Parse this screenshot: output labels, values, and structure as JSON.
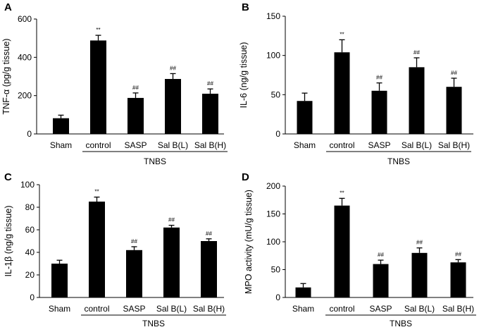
{
  "figure": {
    "background": "#ffffff",
    "bar_color": "#000000"
  },
  "chart_data": [
    {
      "panel": "A",
      "type": "bar",
      "title": "",
      "xlabel": "",
      "ylabel": "TNF-α (pg/g tissue)",
      "ylim": [
        0,
        600
      ],
      "yticks": [
        "0",
        "200",
        "400",
        "600"
      ],
      "ytick_values": [
        0,
        200,
        400,
        600
      ],
      "categories": [
        "Sham",
        "control",
        "SASP",
        "Sal B(L)",
        "Sal B(H)"
      ],
      "values": [
        82,
        488,
        188,
        287,
        210
      ],
      "errors": [
        16,
        27,
        26,
        28,
        25
      ],
      "annotations": [
        "",
        "**",
        "##",
        "##",
        "##"
      ],
      "group_label": "TNBS"
    },
    {
      "panel": "B",
      "type": "bar",
      "title": "",
      "xlabel": "",
      "ylabel": "IL-6 (ng/g tissue)",
      "ylim": [
        0,
        150
      ],
      "yticks": [
        "0",
        "50",
        "100",
        "150"
      ],
      "ytick_values": [
        0,
        50,
        100,
        150
      ],
      "categories": [
        "Sham",
        "control",
        "SASP",
        "Sal B(L)",
        "Sal B(H)"
      ],
      "values": [
        42,
        104,
        55,
        85,
        60
      ],
      "errors": [
        10,
        16,
        10,
        12,
        11
      ],
      "annotations": [
        "",
        "**",
        "##",
        "##",
        "##"
      ],
      "group_label": "TNBS"
    },
    {
      "panel": "C",
      "type": "bar",
      "title": "",
      "xlabel": "",
      "ylabel": "IL-1β (ng/g tissue)",
      "ylim": [
        0,
        100
      ],
      "yticks": [
        "0",
        "20",
        "40",
        "60",
        "80",
        "100"
      ],
      "ytick_values": [
        0,
        20,
        40,
        60,
        80,
        100
      ],
      "categories": [
        "Sham",
        "control",
        "SASP",
        "Sal B(L)",
        "Sal B(H)"
      ],
      "values": [
        30,
        85,
        42,
        62,
        50
      ],
      "errors": [
        3,
        4,
        3,
        2,
        2
      ],
      "annotations": [
        "",
        "**",
        "##",
        "##",
        "##"
      ],
      "group_label": "TNBS"
    },
    {
      "panel": "D",
      "type": "bar",
      "title": "",
      "xlabel": "",
      "ylabel": "MPO activity (mU/g tissue)",
      "ylim": [
        0,
        200
      ],
      "yticks": [
        "0",
        "50",
        "100",
        "150",
        "200"
      ],
      "ytick_values": [
        0,
        50,
        100,
        150,
        200
      ],
      "categories": [
        "Sham",
        "control",
        "SASP",
        "Sal B(L)",
        "Sal B(H)"
      ],
      "values": [
        18,
        165,
        60,
        80,
        63
      ],
      "errors": [
        7,
        13,
        7,
        9,
        5
      ],
      "annotations": [
        "",
        "**",
        "##",
        "##",
        "##"
      ],
      "group_label": "TNBS"
    }
  ]
}
